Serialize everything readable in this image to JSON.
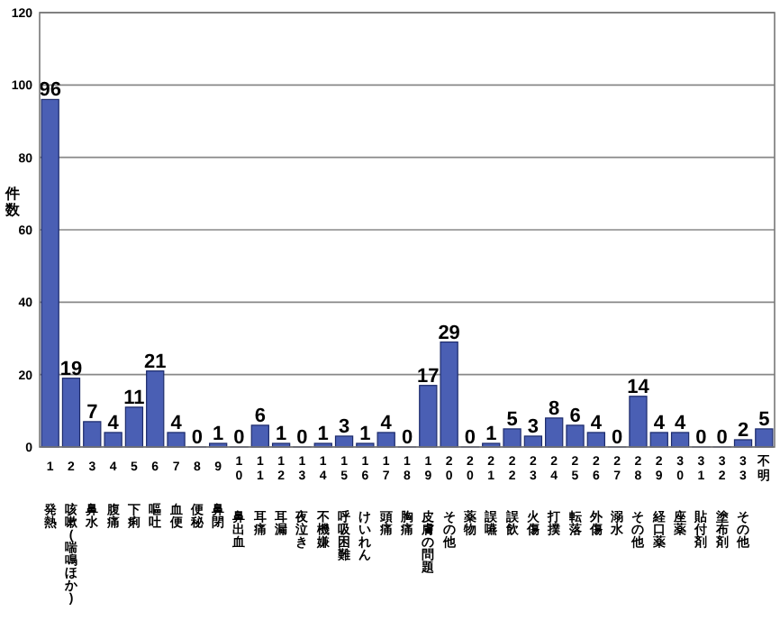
{
  "chart_data": {
    "type": "bar",
    "ylabel": "件数",
    "categories": [
      "1 発熱",
      "2 咳嗽(喘鳴ほか)",
      "3 鼻水",
      "4 腹痛",
      "5 下痢",
      "6 嘔吐",
      "7 血便",
      "8 便秘",
      "9 鼻閉",
      "10 鼻出血",
      "11 耳痛",
      "12 耳漏",
      "13 夜泣き",
      "14 不機嫌",
      "15 呼吸困難",
      "16 けいれん",
      "17 頭痛",
      "18 胸痛",
      "19 皮膚の問題",
      "20 その他",
      "20 薬物",
      "21 誤嚥",
      "22 誤飲",
      "23 火傷",
      "24 打撲",
      "25 転落",
      "26 外傷",
      "27 溺水",
      "28 その他",
      "29 経口薬",
      "30 座薬",
      "31 貼付剤",
      "32 塗布剤",
      "33 その他",
      "不明"
    ],
    "values": [
      96,
      19,
      7,
      4,
      11,
      21,
      4,
      0,
      1,
      0,
      6,
      1,
      0,
      1,
      3,
      1,
      4,
      0,
      17,
      29,
      0,
      1,
      5,
      3,
      8,
      6,
      4,
      0,
      14,
      4,
      4,
      0,
      0,
      2,
      5
    ],
    "color": "#4a5fb4",
    "ylim": [
      0,
      120
    ],
    "yticks": [
      0,
      20,
      40,
      60,
      80,
      100,
      120
    ],
    "grid": "y",
    "data_labels": true
  }
}
